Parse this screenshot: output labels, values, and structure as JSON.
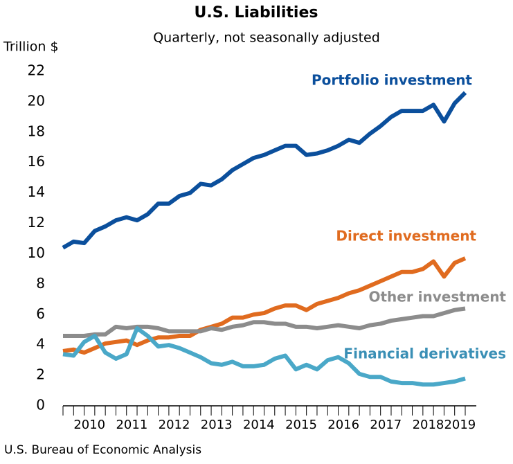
{
  "chart_data": {
    "type": "line",
    "title": "U.S. Liabilities",
    "subtitle": "Quarterly, not seasonally adjusted",
    "y_label": "Trillion $",
    "source": "U.S. Bureau of Economic Analysis",
    "x": [
      2009.75,
      2010.0,
      2010.25,
      2010.5,
      2010.75,
      2011.0,
      2011.25,
      2011.5,
      2011.75,
      2012.0,
      2012.25,
      2012.5,
      2012.75,
      2013.0,
      2013.25,
      2013.5,
      2013.75,
      2014.0,
      2014.25,
      2014.5,
      2014.75,
      2015.0,
      2015.25,
      2015.5,
      2015.75,
      2016.0,
      2016.25,
      2016.5,
      2016.75,
      2017.0,
      2017.25,
      2017.5,
      2017.75,
      2018.0,
      2018.25,
      2018.5,
      2018.75,
      2019.0,
      2019.25
    ],
    "xlim": [
      2009.75,
      2019.25
    ],
    "xticks": [
      {
        "value": 2010.375,
        "label": "2010"
      },
      {
        "value": 2011.375,
        "label": "2011"
      },
      {
        "value": 2012.375,
        "label": "2012"
      },
      {
        "value": 2013.375,
        "label": "2013"
      },
      {
        "value": 2014.375,
        "label": "2014"
      },
      {
        "value": 2015.375,
        "label": "2015"
      },
      {
        "value": 2016.375,
        "label": "2016"
      },
      {
        "value": 2017.375,
        "label": "2017"
      },
      {
        "value": 2018.375,
        "label": "2018"
      },
      {
        "value": 2019.125,
        "label": "2019"
      }
    ],
    "ylim": [
      0,
      22
    ],
    "yticks": [
      0,
      2,
      4,
      6,
      8,
      10,
      12,
      14,
      16,
      18,
      20,
      22
    ],
    "series": [
      {
        "name": "Portfolio investment",
        "color": "#0b4f9c",
        "values": [
          10.4,
          10.8,
          10.7,
          11.5,
          11.8,
          12.2,
          12.4,
          12.2,
          12.6,
          13.3,
          13.3,
          13.8,
          14.0,
          14.6,
          14.5,
          14.9,
          15.5,
          15.9,
          16.3,
          16.5,
          16.8,
          17.1,
          17.1,
          16.5,
          16.6,
          16.8,
          17.1,
          17.5,
          17.3,
          17.9,
          18.4,
          19.0,
          19.4,
          19.4,
          19.4,
          19.8,
          18.7,
          19.9,
          20.6
        ]
      },
      {
        "name": "Direct investment",
        "color": "#e06b1f",
        "values": [
          3.6,
          3.7,
          3.5,
          3.8,
          4.1,
          4.2,
          4.3,
          4.0,
          4.3,
          4.5,
          4.5,
          4.6,
          4.6,
          5.0,
          5.2,
          5.4,
          5.8,
          5.8,
          6.0,
          6.1,
          6.4,
          6.6,
          6.6,
          6.3,
          6.7,
          6.9,
          7.1,
          7.4,
          7.6,
          7.9,
          8.2,
          8.5,
          8.8,
          8.8,
          9.0,
          9.5,
          8.5,
          9.4,
          9.7
        ]
      },
      {
        "name": "Other investment",
        "color": "#8c8c8c",
        "values": [
          4.6,
          4.6,
          4.6,
          4.7,
          4.7,
          5.2,
          5.1,
          5.2,
          5.2,
          5.1,
          4.9,
          4.9,
          4.9,
          4.9,
          5.1,
          5.0,
          5.2,
          5.3,
          5.5,
          5.5,
          5.4,
          5.4,
          5.2,
          5.2,
          5.1,
          5.2,
          5.3,
          5.2,
          5.1,
          5.3,
          5.4,
          5.6,
          5.7,
          5.8,
          5.9,
          5.9,
          6.1,
          6.3,
          6.4
        ]
      },
      {
        "name": "Financial derivatives",
        "color": "#4aa8c8",
        "values": [
          3.4,
          3.3,
          4.2,
          4.6,
          3.5,
          3.1,
          3.4,
          5.1,
          4.6,
          3.9,
          4.0,
          3.8,
          3.5,
          3.2,
          2.8,
          2.7,
          2.9,
          2.6,
          2.6,
          2.7,
          3.1,
          3.3,
          2.4,
          2.7,
          2.4,
          3.0,
          3.2,
          2.8,
          2.1,
          1.9,
          1.9,
          1.6,
          1.5,
          1.5,
          1.4,
          1.4,
          1.5,
          1.6,
          1.8
        ]
      }
    ]
  }
}
